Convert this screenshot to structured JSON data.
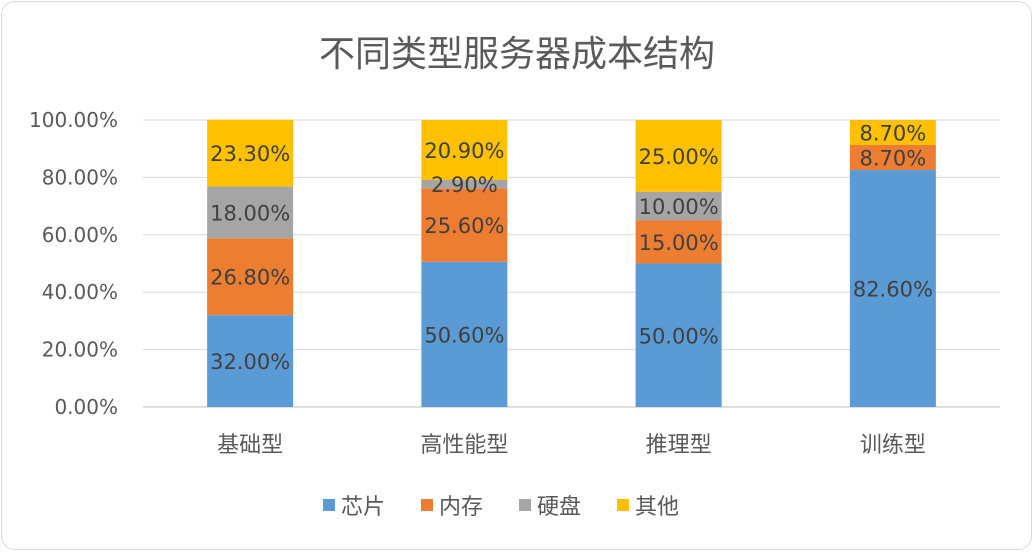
{
  "chart_data": {
    "type": "bar",
    "stacked": true,
    "title": "不同类型服务器成本结构",
    "xlabel": "",
    "ylabel": "",
    "ylim": [
      0,
      100
    ],
    "yticks": [
      "0.00%",
      "20.00%",
      "40.00%",
      "60.00%",
      "80.00%",
      "100.00%"
    ],
    "ytick_values": [
      0,
      20,
      40,
      60,
      80,
      100
    ],
    "categories": [
      "基础型",
      "高性能型",
      "推理型",
      "训练型"
    ],
    "grid": true,
    "legend_position": "bottom",
    "series": [
      {
        "name": "芯片",
        "color": "#5b9bd5",
        "values": [
          32.0,
          50.6,
          50.0,
          82.6
        ],
        "labels": [
          "32.00%",
          "50.60%",
          "50.00%",
          "82.60%"
        ]
      },
      {
        "name": "内存",
        "color": "#ed7d31",
        "values": [
          26.8,
          25.6,
          15.0,
          8.7
        ],
        "labels": [
          "26.80%",
          "25.60%",
          "15.00%",
          "8.70%"
        ]
      },
      {
        "name": "硬盘",
        "color": "#a5a5a5",
        "values": [
          18.0,
          2.9,
          10.0,
          0
        ],
        "labels": [
          "18.00%",
          "2.90%",
          "10.00%",
          ""
        ]
      },
      {
        "name": "其他",
        "color": "#ffc000",
        "values": [
          23.3,
          20.9,
          25.0,
          8.7
        ],
        "labels": [
          "23.30%",
          "20.90%",
          "25.00%",
          "8.70%"
        ]
      }
    ]
  }
}
